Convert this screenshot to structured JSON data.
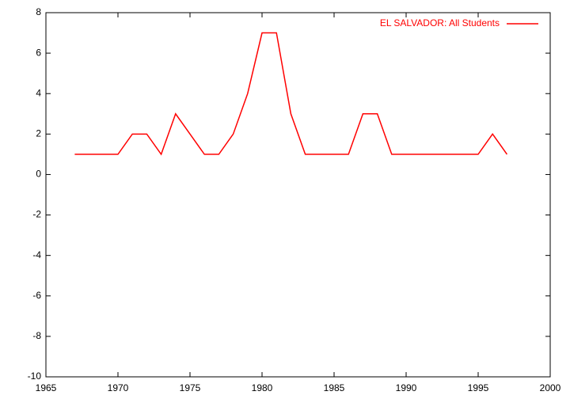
{
  "chart_data": {
    "type": "line",
    "x": [
      1967,
      1968,
      1969,
      1970,
      1971,
      1972,
      1973,
      1974,
      1975,
      1976,
      1977,
      1978,
      1979,
      1980,
      1981,
      1982,
      1983,
      1984,
      1985,
      1986,
      1987,
      1988,
      1989,
      1990,
      1991,
      1992,
      1993,
      1994,
      1995,
      1996,
      1997
    ],
    "series": [
      {
        "name": "EL SALVADOR: All Students",
        "color": "#ff0000",
        "values": [
          1,
          1,
          1,
          1,
          2,
          2,
          1,
          3,
          2,
          1,
          1,
          2,
          4,
          7,
          7,
          3,
          1,
          1,
          1,
          1,
          3,
          3,
          1,
          1,
          1,
          1,
          1,
          1,
          1,
          2,
          1
        ]
      }
    ],
    "xlim": [
      1965,
      2000
    ],
    "xticks": [
      1965,
      1970,
      1975,
      1980,
      1985,
      1990,
      1995,
      2000
    ],
    "ylim": [
      -10,
      8
    ],
    "yticks": [
      -10,
      -8,
      -6,
      -4,
      -2,
      0,
      2,
      4,
      6,
      8
    ],
    "grid": false,
    "legend": "top-right"
  }
}
